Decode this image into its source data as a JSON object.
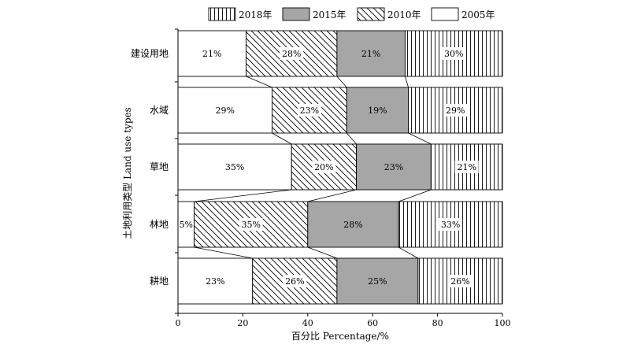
{
  "chart_data": {
    "type": "bar",
    "orientation": "horizontal",
    "stacked": true,
    "categories": [
      "建设用地",
      "水域",
      "草地",
      "林地",
      "耕地"
    ],
    "series": [
      {
        "name": "2005年",
        "values": [
          21,
          29,
          35,
          5,
          23
        ],
        "fill": "white"
      },
      {
        "name": "2010年",
        "values": [
          28,
          23,
          20,
          35,
          26
        ],
        "fill": "diagonal-hatch"
      },
      {
        "name": "2015年",
        "values": [
          21,
          19,
          23,
          28,
          25
        ],
        "fill": "gray"
      },
      {
        "name": "2018年",
        "values": [
          30,
          29,
          21,
          33,
          26
        ],
        "fill": "vertical-stripes"
      }
    ],
    "legend_order": [
      "2018年",
      "2015年",
      "2010年",
      "2005年"
    ],
    "xlabel": "百分比 Percentage/%",
    "ylabel": "土地利用类型 Land use types",
    "xlim": [
      0,
      100
    ],
    "xticks": [
      0,
      20,
      40,
      60,
      80,
      100
    ],
    "grid": false,
    "legend_position": "top",
    "colors": {
      "gray": "#a6a6a6",
      "stroke": "#000000",
      "connector": "#555555"
    }
  }
}
